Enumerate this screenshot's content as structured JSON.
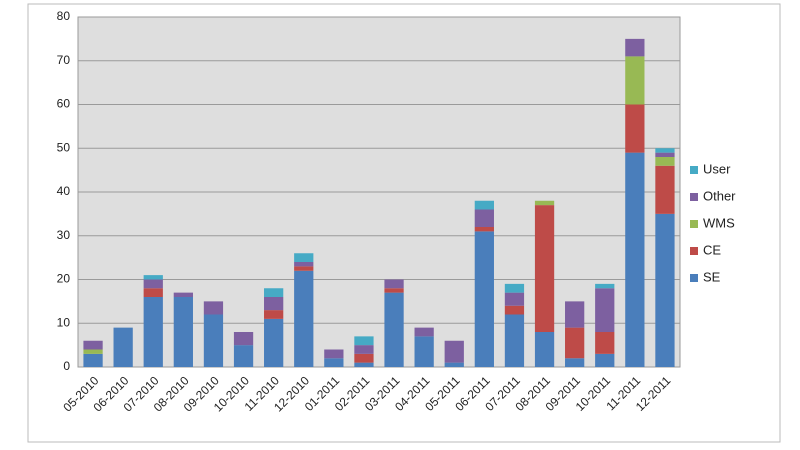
{
  "chart_data": {
    "type": "stacked_bar",
    "categories": [
      "05-2010",
      "06-2010",
      "07-2010",
      "08-2010",
      "09-2010",
      "10-2010",
      "11-2010",
      "12-2010",
      "01-2011",
      "02-2011",
      "03-2011",
      "04-2011",
      "05-2011",
      "06-2011",
      "07-2011",
      "08-2011",
      "09-2011",
      "10-2011",
      "11-2011",
      "12-2011"
    ],
    "series": [
      {
        "name": "SE",
        "color": "#4a7ebb",
        "values": [
          3,
          9,
          16,
          16,
          12,
          5,
          11,
          22,
          2,
          1,
          17,
          7,
          1,
          31,
          12,
          8,
          2,
          3,
          49,
          35
        ]
      },
      {
        "name": "CE",
        "color": "#be4b48",
        "values": [
          0,
          0,
          2,
          0,
          0,
          0,
          2,
          1,
          0,
          2,
          1,
          0,
          0,
          1,
          2,
          29,
          7,
          5,
          11,
          11
        ]
      },
      {
        "name": "WMS",
        "color": "#98b954",
        "values": [
          1,
          0,
          0,
          0,
          0,
          0,
          0,
          0,
          0,
          0,
          0,
          0,
          0,
          0,
          0,
          1,
          0,
          0,
          11,
          2
        ]
      },
      {
        "name": "Other",
        "color": "#7d60a0",
        "values": [
          2,
          0,
          2,
          1,
          3,
          3,
          3,
          1,
          2,
          2,
          2,
          2,
          5,
          4,
          3,
          0,
          6,
          10,
          4,
          1
        ]
      },
      {
        "name": "User",
        "color": "#46aac5",
        "values": [
          0,
          0,
          1,
          0,
          0,
          0,
          2,
          2,
          0,
          2,
          0,
          0,
          0,
          2,
          2,
          0,
          0,
          1,
          0,
          1
        ]
      }
    ],
    "ylim": [
      0,
      80
    ],
    "yticks": [
      0,
      10,
      20,
      30,
      40,
      50,
      60,
      70,
      80
    ],
    "grid": true,
    "legend": "right"
  }
}
